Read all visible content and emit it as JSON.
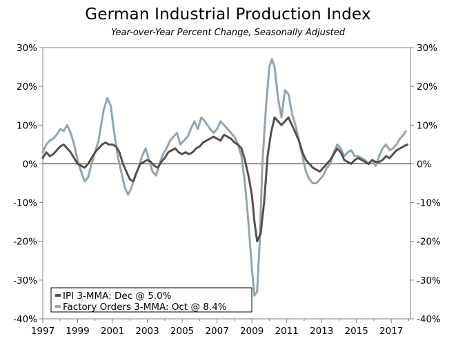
{
  "chart_data": {
    "type": "line",
    "title": "German Industrial Production Index",
    "subtitle": "Year-over-Year Percent Change, Seasonally Adjusted",
    "xlabel": "",
    "ylabel": "",
    "xlim": [
      1997,
      2018.1
    ],
    "ylim": [
      -40,
      30
    ],
    "y_ticks": [
      30,
      20,
      10,
      0,
      -10,
      -20,
      -30,
      -40
    ],
    "y_tick_labels": [
      "30%",
      "20%",
      "10%",
      "0%",
      "-10%",
      "-20%",
      "-30%",
      "-40%"
    ],
    "x_ticks": [
      1997,
      1999,
      2001,
      2003,
      2005,
      2007,
      2009,
      2011,
      2013,
      2015,
      2017
    ],
    "x_tick_labels": [
      "1997",
      "1999",
      "2001",
      "2003",
      "2005",
      "2007",
      "2009",
      "2011",
      "2013",
      "2015",
      "2017"
    ],
    "legend_position": "bottom-left",
    "series": [
      {
        "name": "Factory Orders 3-MMA",
        "legend_label": "Factory Orders 3-MMA: Oct @ 8.4%",
        "color": "#8fa5b4",
        "x": [
          1997.0,
          1997.2,
          1997.4,
          1997.6,
          1997.8,
          1998.0,
          1998.2,
          1998.4,
          1998.6,
          1998.8,
          1999.0,
          1999.2,
          1999.4,
          1999.6,
          1999.8,
          2000.0,
          2000.2,
          2000.35,
          2000.5,
          2000.7,
          2000.9,
          2001.1,
          2001.3,
          2001.5,
          2001.7,
          2001.9,
          2002.1,
          2002.3,
          2002.5,
          2002.7,
          2002.9,
          2003.1,
          2003.3,
          2003.5,
          2003.7,
          2003.9,
          2004.1,
          2004.3,
          2004.5,
          2004.7,
          2004.9,
          2005.1,
          2005.3,
          2005.5,
          2005.7,
          2005.9,
          2006.1,
          2006.3,
          2006.45,
          2006.6,
          2006.8,
          2007.0,
          2007.2,
          2007.4,
          2007.6,
          2007.8,
          2008.0,
          2008.2,
          2008.4,
          2008.6,
          2008.8,
          2009.0,
          2009.15,
          2009.3,
          2009.45,
          2009.6,
          2009.8,
          2010.0,
          2010.15,
          2010.3,
          2010.5,
          2010.7,
          2010.9,
          2011.1,
          2011.3,
          2011.5,
          2011.7,
          2011.9,
          2012.1,
          2012.3,
          2012.5,
          2012.7,
          2012.9,
          2013.1,
          2013.3,
          2013.5,
          2013.7,
          2013.9,
          2014.1,
          2014.3,
          2014.5,
          2014.7,
          2014.9,
          2015.1,
          2015.3,
          2015.5,
          2015.7,
          2015.9,
          2016.1,
          2016.3,
          2016.5,
          2016.7,
          2016.9,
          2017.1,
          2017.3,
          2017.5,
          2017.7,
          2017.83
        ],
        "y": [
          3,
          5,
          6,
          6.5,
          7.5,
          9,
          8.5,
          10,
          8,
          5,
          1,
          -2,
          -4.5,
          -3.5,
          0,
          3,
          6,
          10,
          14,
          17,
          15,
          8,
          2,
          -2,
          -6,
          -8,
          -6,
          -3,
          -1,
          2,
          4,
          1,
          -2,
          -3,
          0,
          2.5,
          4,
          6,
          7,
          8,
          5,
          6,
          7,
          9,
          11,
          9,
          12,
          11,
          10,
          9,
          8,
          9,
          11,
          10,
          9,
          8,
          7,
          5,
          2,
          -5,
          -15,
          -27,
          -34,
          -33,
          -20,
          0,
          14,
          25,
          27,
          25,
          17,
          12,
          19,
          18,
          13,
          10,
          6,
          2,
          -2,
          -4,
          -5,
          -5,
          -4,
          -3,
          -1,
          0,
          3,
          5,
          4,
          2,
          3,
          3.5,
          2,
          2,
          1.5,
          1,
          0,
          1,
          -0.5,
          2,
          4,
          5,
          3.5,
          4,
          5,
          6.5,
          7.5,
          8.4
        ]
      },
      {
        "name": "IPI 3-MMA",
        "legend_label": "IPI 3-MMA: Dec @ 5.0%",
        "color": "#5a4e45",
        "x": [
          1997.0,
          1997.2,
          1997.4,
          1997.6,
          1997.8,
          1998.0,
          1998.2,
          1998.4,
          1998.6,
          1998.8,
          1999.0,
          1999.2,
          1999.4,
          1999.6,
          1999.8,
          2000.0,
          2000.2,
          2000.4,
          2000.6,
          2000.8,
          2001.0,
          2001.2,
          2001.4,
          2001.6,
          2001.8,
          2002.0,
          2002.2,
          2002.4,
          2002.6,
          2002.8,
          2003.0,
          2003.2,
          2003.4,
          2003.6,
          2003.8,
          2004.0,
          2004.2,
          2004.4,
          2004.6,
          2004.8,
          2005.0,
          2005.2,
          2005.4,
          2005.6,
          2005.8,
          2006.0,
          2006.2,
          2006.4,
          2006.6,
          2006.8,
          2007.0,
          2007.2,
          2007.4,
          2007.6,
          2007.8,
          2008.0,
          2008.2,
          2008.4,
          2008.6,
          2008.8,
          2009.0,
          2009.15,
          2009.3,
          2009.5,
          2009.7,
          2009.9,
          2010.1,
          2010.3,
          2010.5,
          2010.7,
          2010.9,
          2011.1,
          2011.3,
          2011.5,
          2011.7,
          2011.9,
          2012.1,
          2012.3,
          2012.5,
          2012.7,
          2012.9,
          2013.1,
          2013.3,
          2013.5,
          2013.7,
          2013.9,
          2014.1,
          2014.3,
          2014.5,
          2014.7,
          2014.9,
          2015.1,
          2015.3,
          2015.5,
          2015.7,
          2015.9,
          2016.1,
          2016.3,
          2016.5,
          2016.7,
          2016.9,
          2017.1,
          2017.3,
          2017.5,
          2017.7,
          2017.92
        ],
        "y": [
          1.5,
          3,
          2,
          2.5,
          3.5,
          4.5,
          5,
          4,
          3,
          1.5,
          0,
          -0.5,
          -1,
          0,
          1.5,
          3,
          4,
          5,
          5.5,
          5,
          5,
          4.5,
          3,
          0,
          -2,
          -4,
          -4.5,
          -2,
          0,
          0.5,
          1,
          0.5,
          -0.5,
          -1,
          0.5,
          1.5,
          3,
          3.5,
          4,
          3,
          2.5,
          3,
          2.5,
          3,
          4,
          4.5,
          5.5,
          6,
          6.5,
          7,
          6.5,
          6,
          7.5,
          7,
          6.5,
          5.5,
          5,
          4,
          1,
          -3,
          -8,
          -15,
          -20,
          -18,
          -10,
          2,
          8,
          12,
          11,
          10,
          11,
          12,
          10,
          8,
          6,
          3,
          1,
          0,
          -1,
          -1.5,
          -2,
          -1,
          0,
          1,
          2.5,
          4,
          3,
          1,
          0.5,
          0,
          1,
          1.5,
          1,
          0.5,
          0,
          1,
          0.5,
          0.5,
          1,
          2,
          1.5,
          2.5,
          3.5,
          4,
          4.5,
          5.0
        ]
      }
    ]
  }
}
